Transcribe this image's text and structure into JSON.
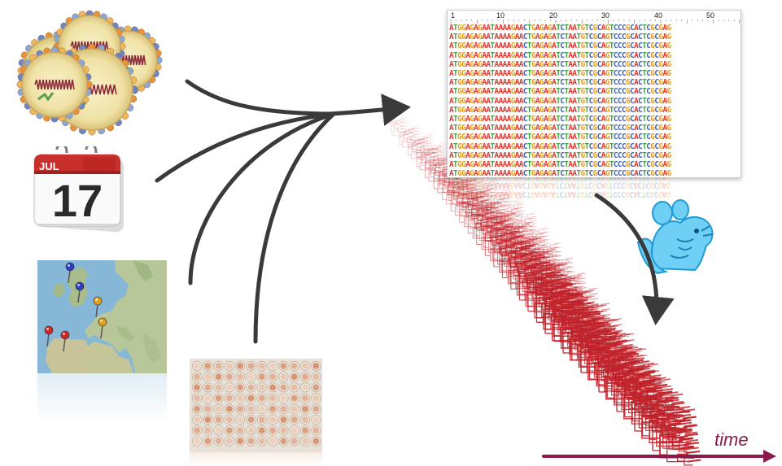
{
  "calendar": {
    "month": "JUL",
    "day": "17"
  },
  "alignment": {
    "ruler_labels": [
      "1",
      "10",
      "20",
      "30",
      "40",
      "50"
    ],
    "sequence": "ATGGAGAGAATAAAAGAACTGAGAGATCTAATGTCGCAGTCCCGCACTCGCGAG",
    "row_count": 17
  },
  "time_axis": {
    "label": "time",
    "color": "#8a1a4a"
  },
  "colors": {
    "A": "#e0342c",
    "C": "#3d5fb4",
    "G": "#e89b1a",
    "T": "#3fa640",
    "arrows": "#3a3a3a",
    "trees": "#c0232b",
    "mouse": "#3bb4e8"
  },
  "icons": [
    "virus-particles-icon",
    "calendar-icon",
    "europe-map-icon",
    "map-pin-icon",
    "well-plate-icon",
    "mouse-icon",
    "phylogenetic-tree-icon"
  ]
}
